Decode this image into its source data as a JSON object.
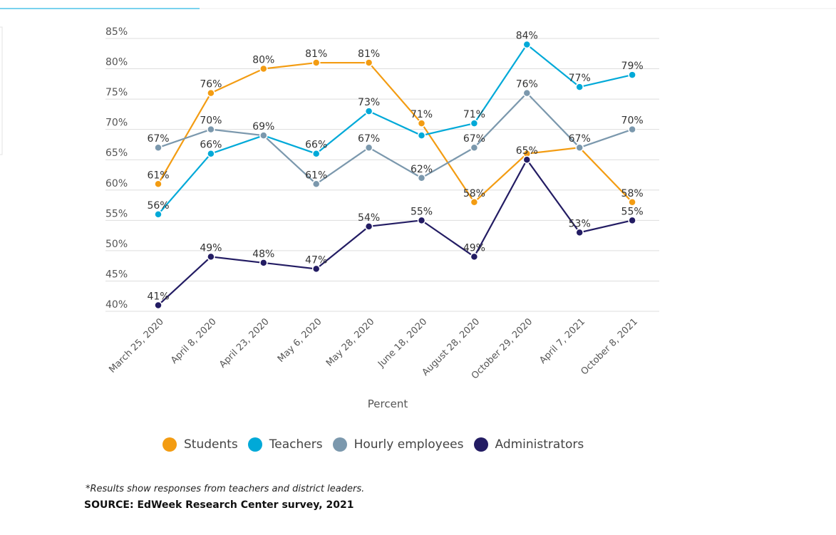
{
  "chart_data": {
    "type": "line",
    "categories": [
      "March 25, 2020",
      "April 8, 2020",
      "April 23, 2020",
      "May 6, 2020",
      "May 28, 2020",
      "June 18, 2020",
      "August 28, 2020",
      "October 29, 2020",
      "April 7, 2021",
      "October 8, 2021"
    ],
    "series": [
      {
        "name": "Students",
        "color": "#f39c12",
        "values": [
          61,
          76,
          80,
          81,
          81,
          71,
          58,
          66,
          67,
          58
        ],
        "labels": [
          true,
          true,
          true,
          true,
          true,
          true,
          true,
          false,
          false,
          true
        ]
      },
      {
        "name": "Teachers",
        "color": "#00a9d8",
        "values": [
          56,
          66,
          69,
          66,
          73,
          69,
          71,
          84,
          77,
          79
        ],
        "labels": [
          true,
          true,
          false,
          true,
          true,
          false,
          true,
          true,
          true,
          true
        ]
      },
      {
        "name": "Hourly employees",
        "color": "#7b98ad",
        "values": [
          67,
          70,
          69,
          61,
          67,
          62,
          67,
          76,
          67,
          70
        ],
        "labels": [
          true,
          true,
          true,
          true,
          true,
          true,
          true,
          true,
          true,
          true
        ]
      },
      {
        "name": "Administrators",
        "color": "#231c63",
        "values": [
          41,
          49,
          48,
          47,
          54,
          55,
          49,
          65,
          53,
          55
        ],
        "labels": [
          true,
          true,
          true,
          true,
          true,
          true,
          true,
          true,
          true,
          true
        ]
      }
    ],
    "yticks": [
      "40%",
      "45%",
      "50%",
      "55%",
      "60%",
      "65%",
      "70%",
      "75%",
      "80%",
      "85%"
    ],
    "ylim": [
      40,
      85
    ],
    "xlabel": "Percent",
    "grid": true,
    "legend": "bottom"
  },
  "footnote": "*Results show responses from teachers and district leaders.",
  "source": "SOURCE: EdWeek Research Center survey, 2021"
}
